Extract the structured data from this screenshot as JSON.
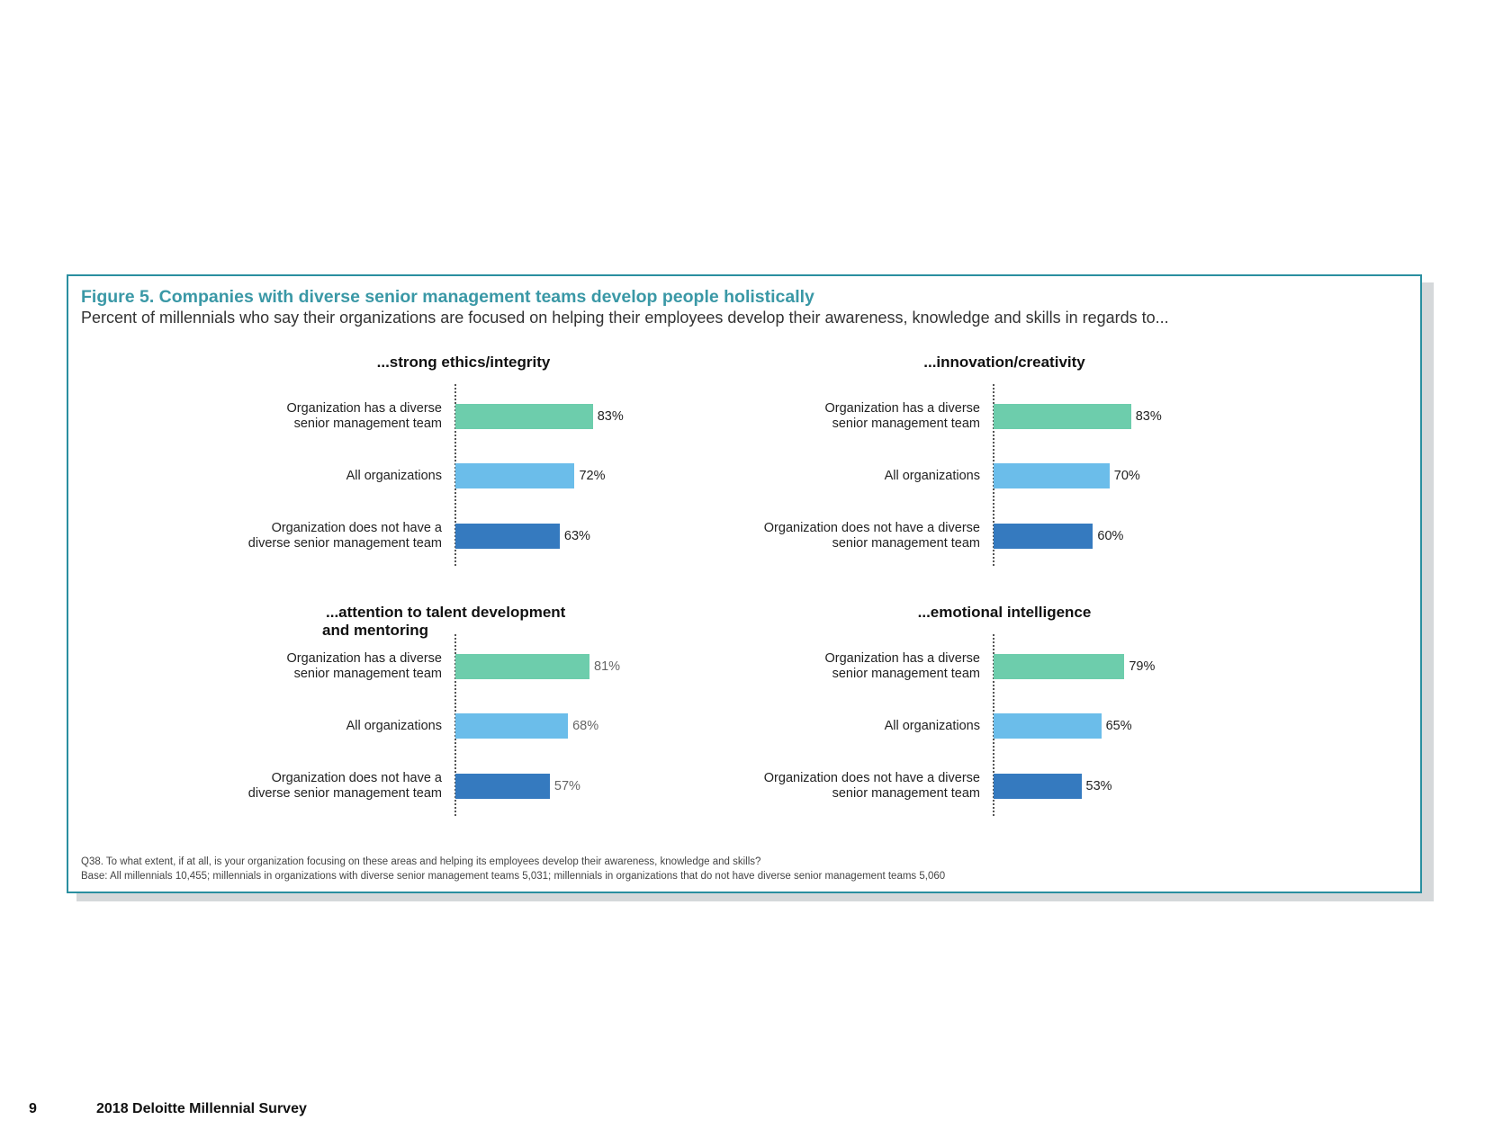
{
  "figure": {
    "title": "Figure 5. Companies with diverse senior management teams develop people holistically",
    "subtitle": "Percent of millennials who say their organizations are focused on helping their employees develop their awareness, knowledge and skills in regards to...",
    "footnote_q": "Q38. To what extent, if at all, is your organization focusing on these areas and helping its employees develop their awareness, knowledge and skills?",
    "footnote_base": "Base: All millennials 10,455; millennials in organizations with diverse senior management teams 5,031; millennials in organizations that do not have diverse senior management teams 5,060"
  },
  "colors": {
    "diverse": "#6dcdac",
    "all": "#6bbdea",
    "not_diverse": "#357abf",
    "accent": "#2a8fa0"
  },
  "chart_data": [
    {
      "type": "bar",
      "orientation": "horizontal",
      "title": "...strong ethics/integrity",
      "categories": [
        "Organization has a diverse senior management team",
        "All organizations",
        "Organization does not have a diverse senior management team"
      ],
      "category_lines": [
        [
          "Organization has a diverse",
          "senior management team"
        ],
        [
          "All organizations"
        ],
        [
          "Organization does not have a",
          "diverse senior management team"
        ]
      ],
      "values": [
        83,
        72,
        63
      ],
      "value_labels": [
        "83%",
        "72%",
        "63%"
      ],
      "xlim": [
        0,
        100
      ]
    },
    {
      "type": "bar",
      "orientation": "horizontal",
      "title": "...innovation/creativity",
      "categories": [
        "Organization has a diverse senior management team",
        "All organizations",
        "Organization does not have a diverse senior management team"
      ],
      "category_lines": [
        [
          "Organization has a diverse",
          "senior management team"
        ],
        [
          "All organizations"
        ],
        [
          "Organization does not have a diverse",
          "senior management team"
        ]
      ],
      "values": [
        83,
        70,
        60
      ],
      "value_labels": [
        "83%",
        "70%",
        "60%"
      ],
      "xlim": [
        0,
        100
      ]
    },
    {
      "type": "bar",
      "orientation": "horizontal",
      "title": "...attention to talent development and mentoring",
      "title_lines": [
        "...attention to talent development",
        "and mentoring"
      ],
      "categories": [
        "Organization has a diverse senior management team",
        "All organizations",
        "Organization does not have a diverse senior management team"
      ],
      "category_lines": [
        [
          "Organization has a diverse",
          "senior management team"
        ],
        [
          "All organizations"
        ],
        [
          "Organization does not have a",
          "diverse senior management team"
        ]
      ],
      "values": [
        81,
        68,
        57
      ],
      "value_labels": [
        "81%",
        "68%",
        "57%"
      ],
      "xlim": [
        0,
        100
      ]
    },
    {
      "type": "bar",
      "orientation": "horizontal",
      "title": "...emotional intelligence",
      "categories": [
        "Organization has a diverse senior management team",
        "All organizations",
        "Organization does not have a diverse senior management team"
      ],
      "category_lines": [
        [
          "Organization has a diverse",
          "senior management team"
        ],
        [
          "All organizations"
        ],
        [
          "Organization does not have a diverse",
          "senior management team"
        ]
      ],
      "values": [
        79,
        65,
        53
      ],
      "value_labels": [
        "79%",
        "65%",
        "53%"
      ],
      "xlim": [
        0,
        100
      ]
    }
  ],
  "footer": {
    "page_number": "9",
    "doc_title": "2018 Deloitte Millennial Survey"
  }
}
